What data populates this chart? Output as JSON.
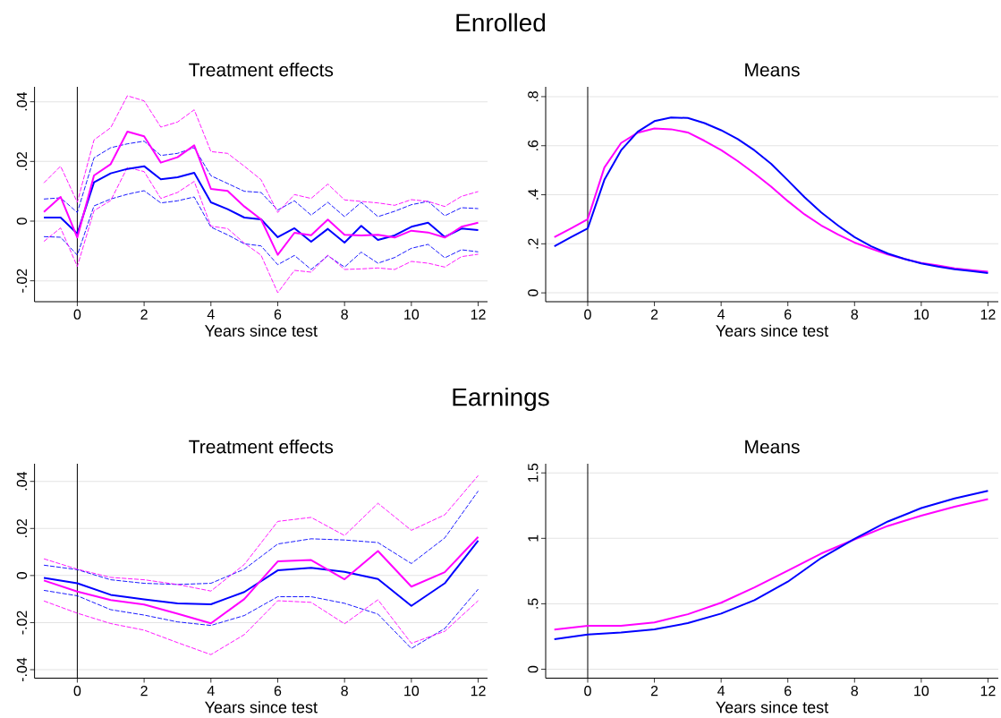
{
  "chart_data": [
    {
      "type": "line",
      "title": "Treatment effects",
      "xlabel": "Years since test",
      "annotations": [
        "Enrolled"
      ],
      "x": [
        -1,
        -0.5,
        0,
        0.5,
        1,
        1.5,
        2,
        2.5,
        3,
        3.5,
        4,
        4.5,
        5,
        5.5,
        6,
        6.5,
        7,
        7.5,
        8,
        8.5,
        9,
        9.5,
        10,
        10.5,
        11,
        11.5,
        12
      ],
      "xlim": [
        -1.28,
        12.28
      ],
      "ylim": [
        -0.027,
        0.045
      ],
      "xticks": [
        0,
        2,
        4,
        6,
        8,
        10,
        12
      ],
      "yticks": [
        {
          "value": -0.02,
          "label": "-.02"
        },
        0,
        {
          "value": 0.02,
          "label": ".02"
        },
        {
          "value": 0.04,
          "label": ".04"
        }
      ],
      "grid": "y",
      "ref_lines": [
        {
          "axis": "x",
          "value": 0,
          "color": "#000000"
        }
      ],
      "series": [
        {
          "color": "#0000ff",
          "line_style": "dashed",
          "values": [
            0.0074,
            0.0078,
            0.0029,
            0.0212,
            0.0246,
            0.0259,
            0.0268,
            0.022,
            0.0227,
            0.0246,
            0.0152,
            0.0126,
            0.01,
            0.0096,
            0.0037,
            0.0068,
            0.002,
            0.0063,
            0.0015,
            0.0063,
            0.0015,
            0.0033,
            0.0055,
            0.0066,
            0.0018,
            0.0045,
            0.0042
          ]
        },
        {
          "color": "#0000ff",
          "line_style": "dashed",
          "values": [
            -0.0052,
            -0.0054,
            -0.0114,
            0.0051,
            0.0074,
            0.009,
            0.0102,
            0.0061,
            0.0068,
            0.0081,
            -0.002,
            -0.0046,
            -0.0076,
            -0.0083,
            -0.0146,
            -0.0115,
            -0.0162,
            -0.0116,
            -0.0154,
            -0.0104,
            -0.0141,
            -0.0122,
            -0.0091,
            -0.0078,
            -0.0123,
            -0.0096,
            -0.0103
          ]
        },
        {
          "color": "#ff00ff",
          "line_style": "dashed",
          "values": [
            0.0128,
            0.0184,
            0.0063,
            0.0272,
            0.0313,
            0.042,
            0.0403,
            0.0315,
            0.0332,
            0.0373,
            0.0233,
            0.0227,
            0.0184,
            0.0139,
            0.0029,
            0.0089,
            0.0076,
            0.0124,
            0.0071,
            0.0066,
            0.0061,
            0.0053,
            0.0072,
            0.0066,
            0.0049,
            0.0083,
            0.0099
          ]
        },
        {
          "color": "#ff00ff",
          "line_style": "dashed",
          "values": [
            -0.0068,
            -0.0023,
            -0.0152,
            0.0035,
            0.0069,
            0.018,
            0.0166,
            0.0076,
            0.0096,
            0.0133,
            -0.0017,
            -0.0025,
            -0.0074,
            -0.0114,
            -0.024,
            -0.0165,
            -0.0171,
            -0.0114,
            -0.0162,
            -0.016,
            -0.0157,
            -0.0162,
            -0.0135,
            -0.0141,
            -0.0154,
            -0.0119,
            -0.0111
          ]
        },
        {
          "color": "#0000ff",
          "line_style": "solid",
          "values": [
            0.0012,
            0.0012,
            -0.0042,
            0.013,
            0.016,
            0.0175,
            0.0184,
            0.014,
            0.0147,
            0.0162,
            0.0063,
            0.004,
            0.0012,
            0.0006,
            -0.0054,
            -0.0024,
            -0.0069,
            -0.0026,
            -0.0072,
            -0.0016,
            -0.0063,
            -0.0048,
            -0.0019,
            -0.0005,
            -0.0053,
            -0.0025,
            -0.003
          ]
        },
        {
          "color": "#ff00ff",
          "line_style": "solid",
          "values": [
            0.0031,
            0.0081,
            -0.0055,
            0.0153,
            0.0191,
            0.03,
            0.0284,
            0.0196,
            0.0214,
            0.0254,
            0.0108,
            0.0101,
            0.0049,
            0.0006,
            -0.0113,
            -0.0039,
            -0.0047,
            0.0005,
            -0.0046,
            -0.0048,
            -0.0046,
            -0.0055,
            -0.0032,
            -0.0038,
            -0.0055,
            -0.0019,
            -0.0005
          ]
        }
      ]
    },
    {
      "type": "line",
      "title": "Means",
      "xlabel": "Years since test",
      "x": [
        -1,
        -0.5,
        0,
        0.5,
        1,
        1.5,
        2,
        2.5,
        3,
        3.5,
        4,
        4.5,
        5,
        5.5,
        6,
        6.5,
        7,
        7.5,
        8,
        8.5,
        9,
        9.5,
        10,
        10.5,
        11,
        11.5,
        12
      ],
      "xlim": [
        -1.26,
        12.31
      ],
      "ylim": [
        -0.036,
        0.84
      ],
      "xticks": [
        0,
        2,
        4,
        6,
        8,
        10,
        12
      ],
      "yticks": [
        0,
        {
          "value": 0.2,
          "label": ".2"
        },
        {
          "value": 0.4,
          "label": ".4"
        },
        {
          "value": 0.6,
          "label": ".6"
        },
        {
          "value": 0.8,
          "label": ".8"
        }
      ],
      "grid": "y",
      "ref_lines": [
        {
          "axis": "x",
          "value": 0,
          "color": "#000000"
        }
      ],
      "series": [
        {
          "color": "#ff00ff",
          "line_style": "solid",
          "values": [
            0.227,
            0.263,
            0.3,
            0.511,
            0.611,
            0.653,
            0.67,
            0.667,
            0.654,
            0.62,
            0.582,
            0.537,
            0.487,
            0.433,
            0.374,
            0.32,
            0.275,
            0.238,
            0.205,
            0.18,
            0.156,
            0.138,
            0.122,
            0.112,
            0.1,
            0.093,
            0.086
          ]
        },
        {
          "color": "#0000ff",
          "line_style": "solid",
          "values": [
            0.19,
            0.227,
            0.263,
            0.461,
            0.581,
            0.657,
            0.7,
            0.715,
            0.713,
            0.692,
            0.663,
            0.627,
            0.581,
            0.526,
            0.459,
            0.39,
            0.328,
            0.275,
            0.227,
            0.19,
            0.16,
            0.138,
            0.12,
            0.107,
            0.096,
            0.089,
            0.081
          ]
        }
      ]
    },
    {
      "type": "line",
      "title": "Treatment effects",
      "xlabel": "Years since test",
      "annotations": [
        "Earnings"
      ],
      "x": [
        -1,
        0,
        1,
        2,
        3,
        4,
        5,
        6,
        7,
        8,
        9,
        10,
        11,
        12
      ],
      "xlim": [
        -1.28,
        12.28
      ],
      "ylim": [
        -0.0436,
        0.0475
      ],
      "xticks": [
        0,
        2,
        4,
        6,
        8,
        10,
        12
      ],
      "yticks": [
        {
          "value": -0.04,
          "label": "-.04"
        },
        {
          "value": -0.02,
          "label": "-.02"
        },
        0,
        {
          "value": 0.02,
          "label": ".02"
        },
        {
          "value": 0.04,
          "label": ".04"
        }
      ],
      "grid": "y",
      "ref_lines": [
        {
          "axis": "x",
          "value": 0,
          "color": "#000000"
        }
      ],
      "series": [
        {
          "color": "#0000ff",
          "line_style": "dashed",
          "values": [
            0.0044,
            0.0025,
            -0.0018,
            -0.0033,
            -0.0038,
            -0.0033,
            0.0027,
            0.0134,
            0.0156,
            0.0151,
            0.014,
            0.0051,
            0.016,
            0.0359
          ]
        },
        {
          "color": "#0000ff",
          "line_style": "dashed",
          "values": [
            -0.0063,
            -0.0086,
            -0.0145,
            -0.0168,
            -0.0197,
            -0.0212,
            -0.017,
            -0.009,
            -0.009,
            -0.0118,
            -0.0164,
            -0.031,
            -0.0225,
            -0.0058
          ]
        },
        {
          "color": "#ff00ff",
          "line_style": "dashed",
          "values": [
            0.0071,
            0.0027,
            -0.0008,
            -0.0018,
            -0.0038,
            -0.0066,
            0.0047,
            0.023,
            0.0247,
            0.017,
            0.0307,
            0.0192,
            0.0258,
            0.0425
          ]
        },
        {
          "color": "#ff00ff",
          "line_style": "dashed",
          "values": [
            -0.0108,
            -0.016,
            -0.0204,
            -0.0232,
            -0.0285,
            -0.0336,
            -0.0251,
            -0.0107,
            -0.0114,
            -0.0205,
            -0.0103,
            -0.0288,
            -0.0237,
            -0.0107
          ]
        },
        {
          "color": "#0000ff",
          "line_style": "solid",
          "values": [
            -0.001,
            -0.0033,
            -0.0082,
            -0.0101,
            -0.0118,
            -0.0122,
            -0.007,
            0.0022,
            0.0033,
            0.0016,
            -0.0015,
            -0.0129,
            -0.0033,
            0.0148
          ]
        },
        {
          "color": "#ff00ff",
          "line_style": "solid",
          "values": [
            -0.0021,
            -0.0068,
            -0.0104,
            -0.0123,
            -0.0162,
            -0.0203,
            -0.01,
            0.006,
            0.0066,
            -0.0016,
            0.0104,
            -0.0047,
            0.0014,
            0.0164
          ]
        }
      ]
    },
    {
      "type": "line",
      "title": "Means",
      "xlabel": "Years since test",
      "x": [
        -1,
        0,
        1,
        2,
        3,
        4,
        5,
        6,
        7,
        8,
        9,
        10,
        11,
        12
      ],
      "xlim": [
        -1.26,
        12.31
      ],
      "ylim": [
        -0.068,
        1.57
      ],
      "xticks": [
        0,
        2,
        4,
        6,
        8,
        10,
        12
      ],
      "yticks": [
        0,
        {
          "value": 0.5,
          "label": ".5"
        },
        1,
        1.5
      ],
      "grid": "y",
      "ref_lines": [
        {
          "axis": "x",
          "value": 0,
          "color": "#000000"
        }
      ],
      "series": [
        {
          "color": "#ff00ff",
          "line_style": "solid",
          "values": [
            0.303,
            0.332,
            0.332,
            0.357,
            0.42,
            0.508,
            0.625,
            0.753,
            0.884,
            0.992,
            1.095,
            1.173,
            1.241,
            1.3
          ]
        },
        {
          "color": "#0000ff",
          "line_style": "solid",
          "values": [
            0.23,
            0.266,
            0.281,
            0.305,
            0.352,
            0.425,
            0.528,
            0.669,
            0.85,
            0.997,
            1.129,
            1.231,
            1.305,
            1.363
          ]
        }
      ]
    }
  ]
}
